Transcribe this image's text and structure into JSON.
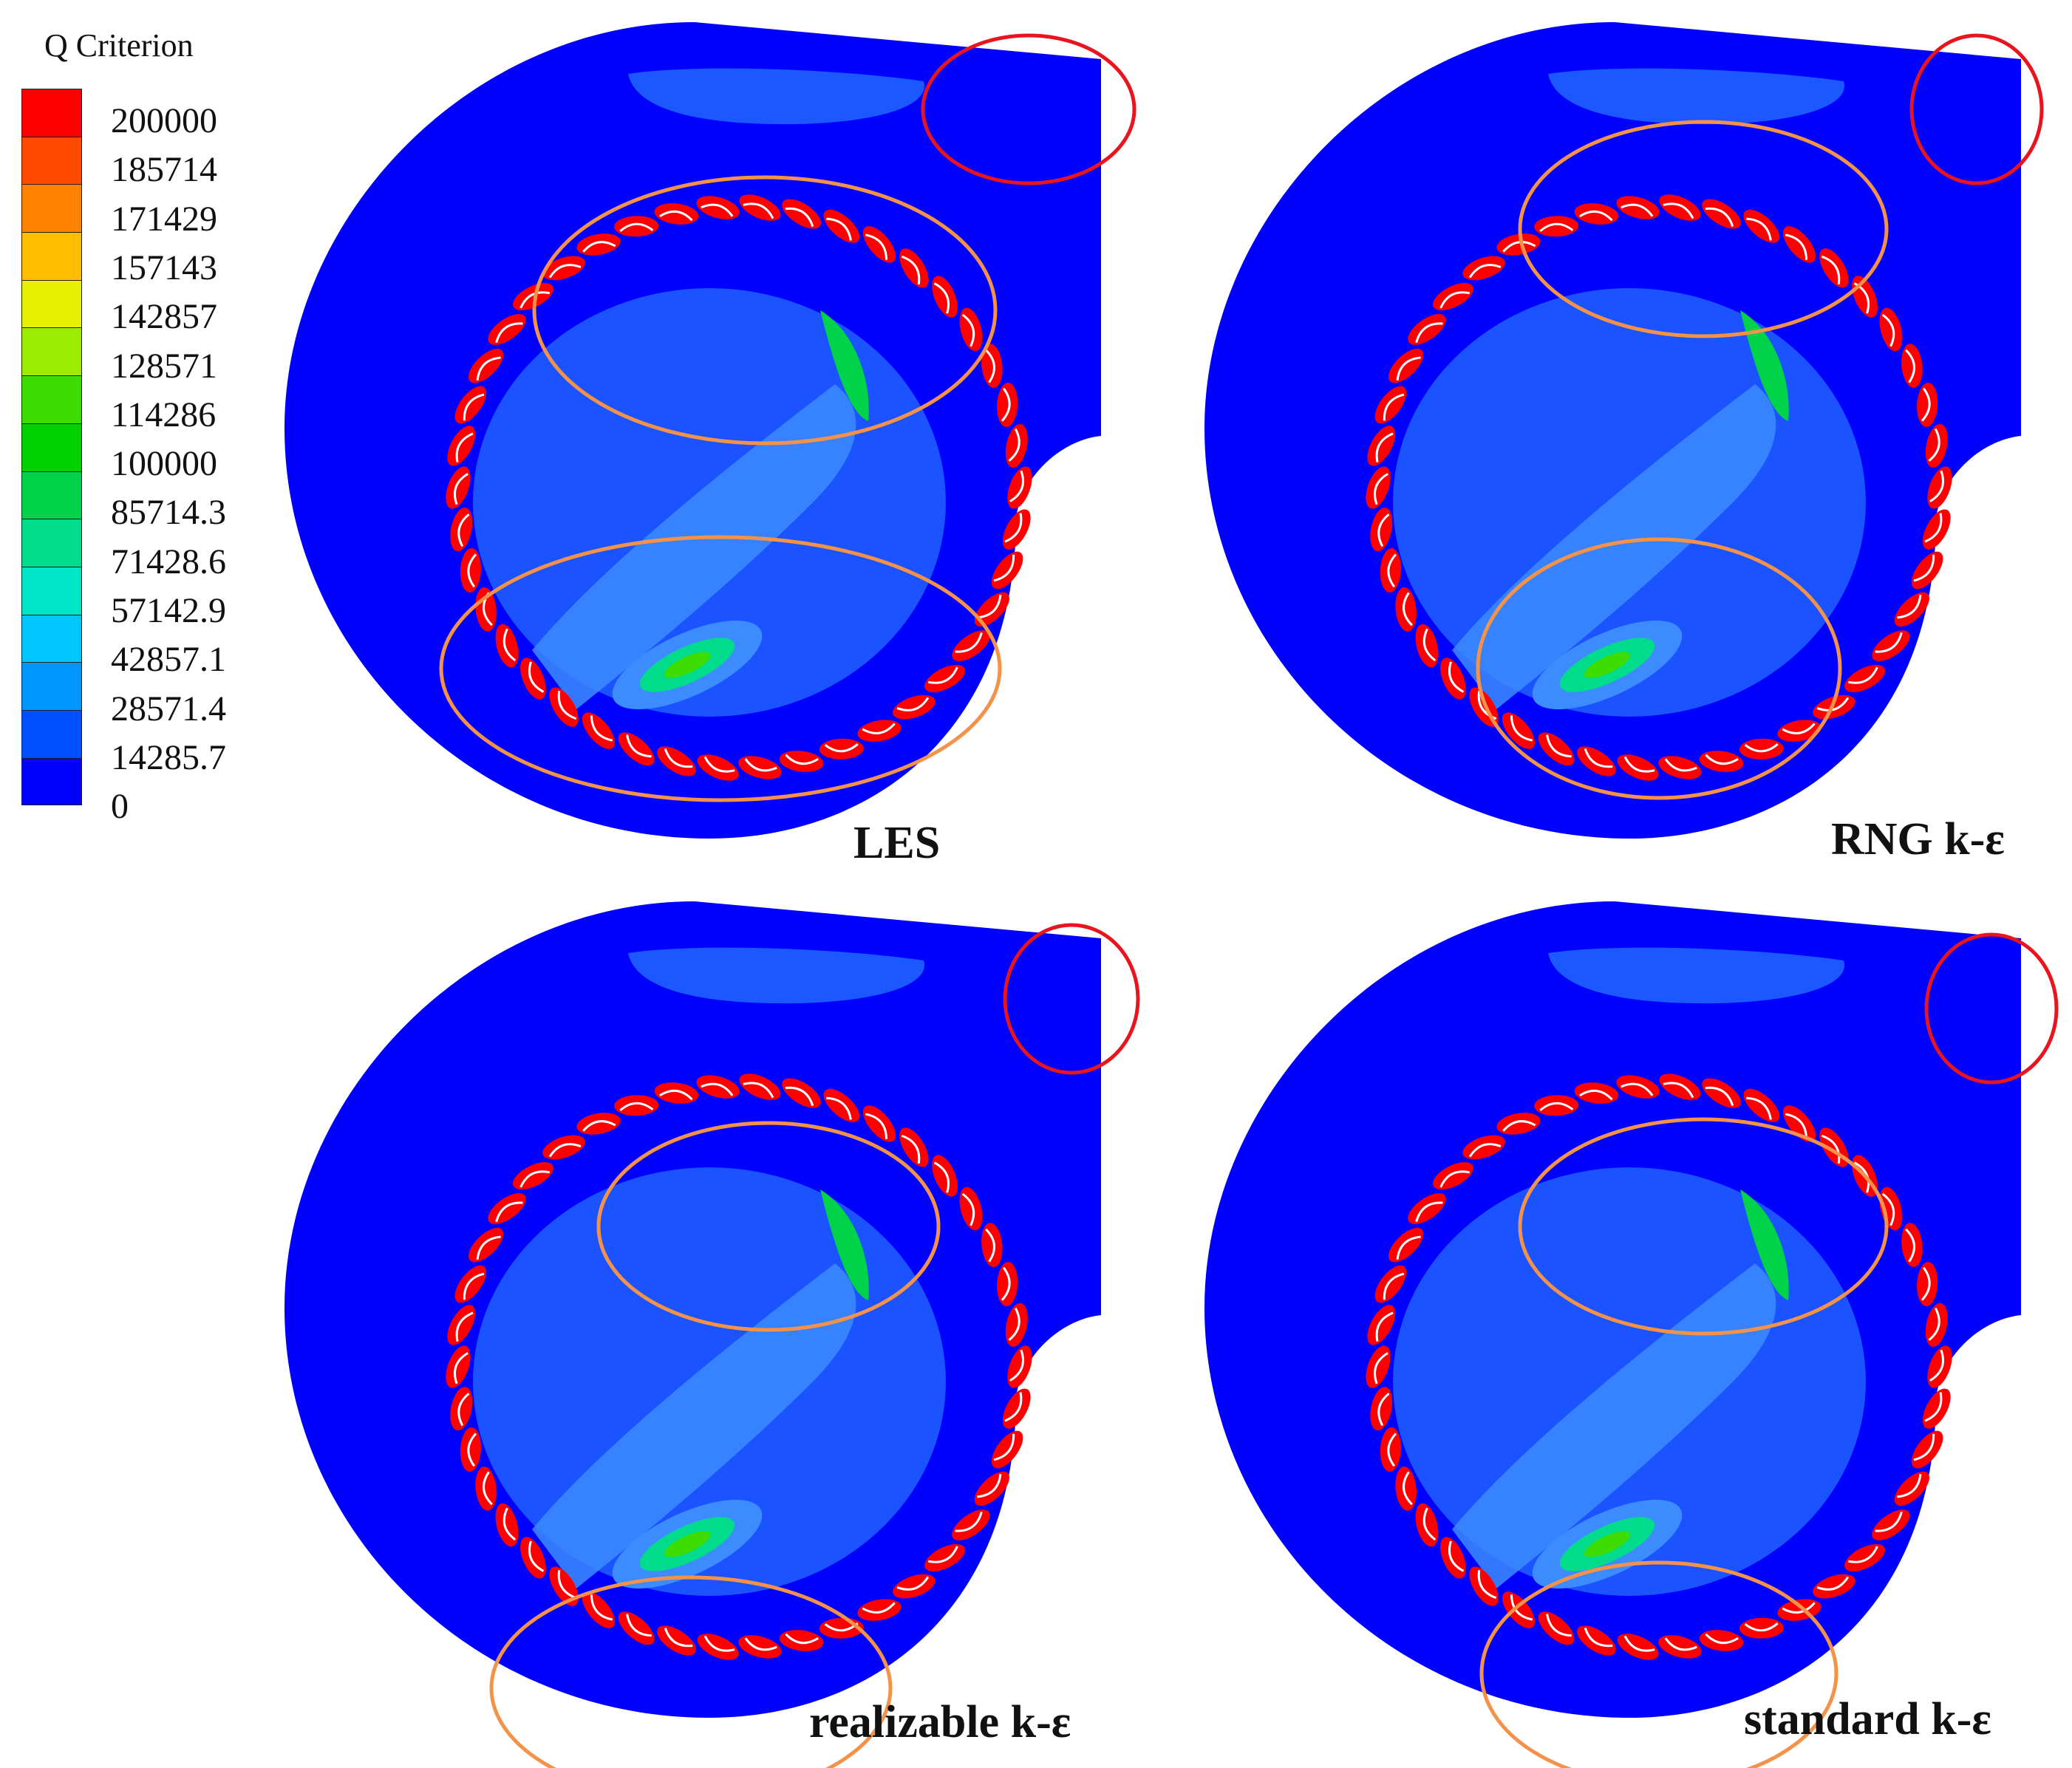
{
  "legend": {
    "title": "Q Criterion",
    "ticks": [
      "200000",
      "185714",
      "171429",
      "157143",
      "142857",
      "128571",
      "114286",
      "100000",
      "85714.3",
      "71428.6",
      "57142.9",
      "42857.1",
      "28571.4",
      "14285.7",
      "0"
    ],
    "colors": [
      "#ff0000",
      "#ff4a00",
      "#ff8200",
      "#ffbe00",
      "#e6f000",
      "#9aec00",
      "#3edc00",
      "#00d200",
      "#00d24a",
      "#00dc8c",
      "#00e6c8",
      "#00c8ff",
      "#0096ff",
      "#0050ff",
      "#0000ff"
    ]
  },
  "panels": [
    {
      "label": "LES"
    },
    {
      "label": "RNG k-ε"
    },
    {
      "label": "realizable k-ε"
    },
    {
      "label": "standard k-ε"
    }
  ],
  "colors": {
    "background_field": "#0000ff",
    "low_region": "#1e62ff",
    "mid_region": "#3d8cff",
    "vortex_core": "#ff0000",
    "highlight_green": "#00d24a",
    "blade": "#ffffff",
    "orange_marker": "#f4924a",
    "red_marker": "#e8141e"
  }
}
